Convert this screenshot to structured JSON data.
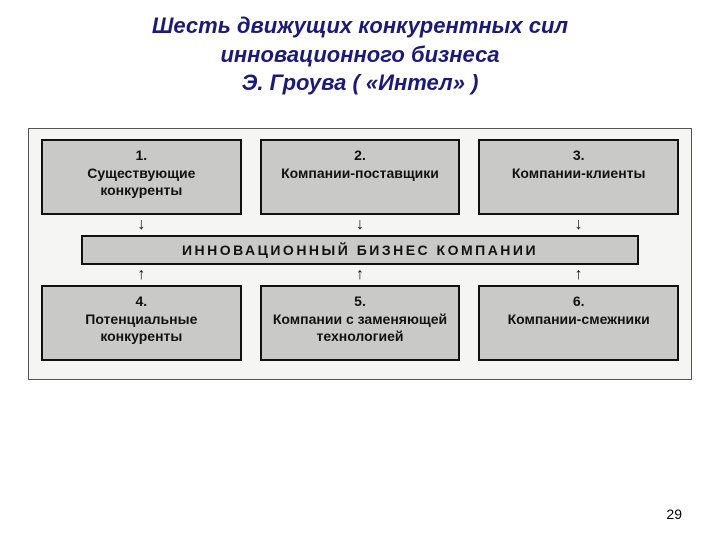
{
  "title": {
    "line1": "Шесть движущих конкурентных сил",
    "line2": "инновационного бизнеса",
    "line3": "Э. Гроува ( «Интел» )",
    "color": "#1a1a7a",
    "fontsize": 22
  },
  "diagram": {
    "background": "#f5f5f3",
    "box_fill": "#c9c9c7",
    "box_border": "#111111",
    "top_forces": [
      {
        "num": "1.",
        "label": "Существующие конкуренты"
      },
      {
        "num": "2.",
        "label": "Компании-поставщики"
      },
      {
        "num": "3.",
        "label": "Компании-клиенты"
      }
    ],
    "center_label": "ИННОВАЦИОННЫЙ БИЗНЕС КОМПАНИИ",
    "bottom_forces": [
      {
        "num": "4.",
        "label": "Потенциальные конкуренты"
      },
      {
        "num": "5.",
        "label": "Компании с заменяющей технологией"
      },
      {
        "num": "6.",
        "label": "Компании-смежники"
      }
    ],
    "arrow_down": "↓",
    "arrow_up": "↑"
  },
  "page_number": "29"
}
